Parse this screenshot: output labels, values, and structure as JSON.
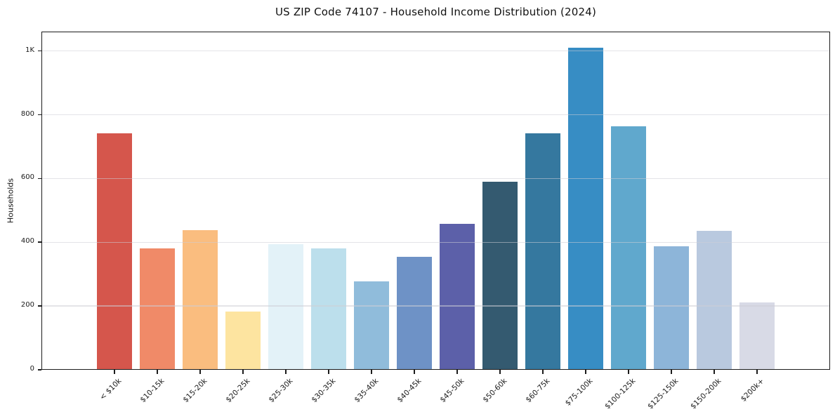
{
  "chart_data": {
    "type": "bar",
    "title": "US ZIP Code 74107 - Household Income Distribution (2024)",
    "xlabel": "",
    "ylabel": "Households",
    "categories": [
      "< $10k",
      "$10-15k",
      "$15-20k",
      "$20-25k",
      "$25-30k",
      "$30-35k",
      "$35-40k",
      "$40-45k",
      "$45-50k",
      "$50-60k",
      "$60-75k",
      "$75-100k",
      "$100-125k",
      "$125-150k",
      "$150-200k",
      "$200k+"
    ],
    "values": [
      742,
      380,
      438,
      183,
      395,
      381,
      278,
      354,
      458,
      590,
      742,
      1010,
      764,
      388,
      436,
      212
    ],
    "bar_colors": [
      "#d5564c",
      "#f08a68",
      "#fabd7f",
      "#fde4a0",
      "#e3f2f8",
      "#bcdfec",
      "#90bcdb",
      "#6e92c6",
      "#5c60a9",
      "#345a70",
      "#35789f",
      "#378dc4",
      "#60a8cd",
      "#8db5d9",
      "#b9c9df",
      "#d8dae6"
    ],
    "ylim": [
      0,
      1062
    ],
    "yticks": [
      {
        "value": 0,
        "label": "0"
      },
      {
        "value": 200,
        "label": "200"
      },
      {
        "value": 400,
        "label": "400"
      },
      {
        "value": 600,
        "label": "600"
      },
      {
        "value": 800,
        "label": "800"
      },
      {
        "value": 1000,
        "label": "1K"
      }
    ],
    "grid": "horizontal",
    "legend": "none"
  },
  "colors": {
    "background": "#ffffff",
    "spine": "#1c1c1c",
    "grid": "#ceced6",
    "text": "#1a1a1a"
  }
}
